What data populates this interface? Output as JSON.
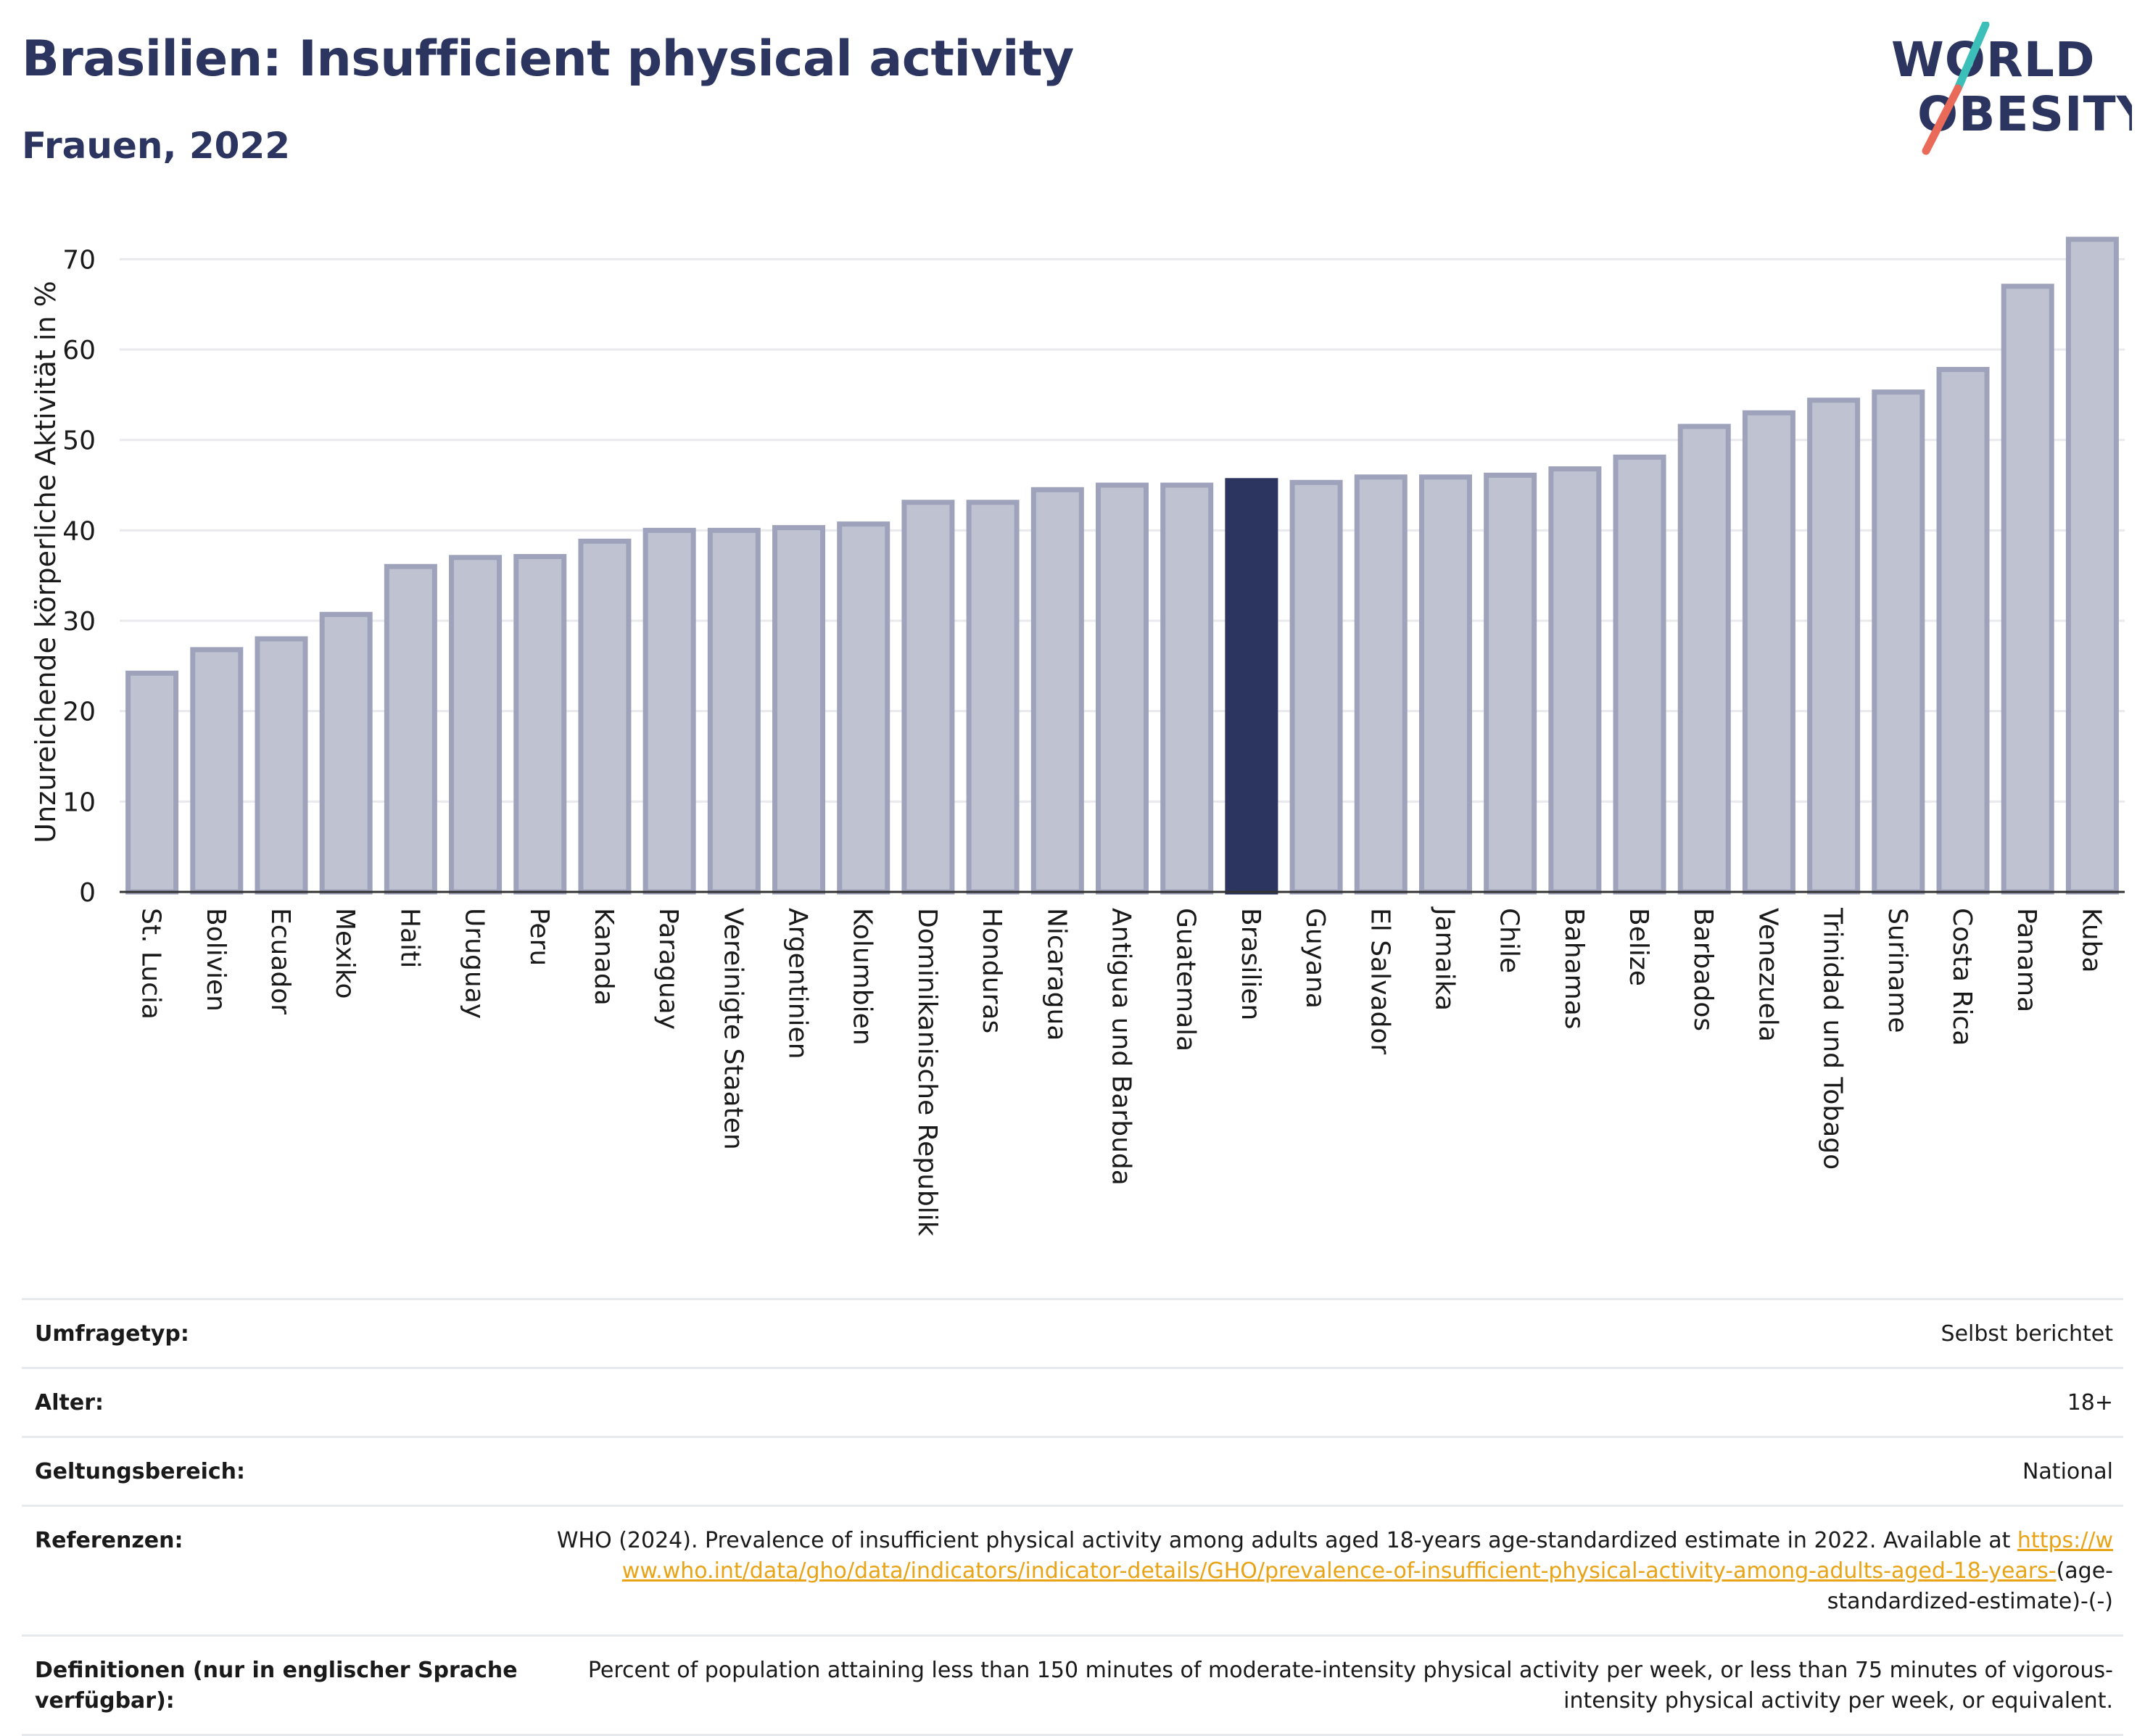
{
  "header": {
    "title": "Brasilien: Insufficient physical activity",
    "subtitle": "Frauen, 2022",
    "logo_line1": "WORLD",
    "logo_line2": "OBESITY"
  },
  "colors": {
    "title": "#2b3560",
    "bar_fill": "#bfc3d1",
    "bar_stroke": "#9ea3bb",
    "highlight": "#2b3560",
    "grid": "#e9e9ee",
    "link": "#e8a317",
    "logo_teal": "#3cbfb8",
    "logo_coral": "#ea6a5a"
  },
  "chart_data": {
    "type": "bar",
    "title": "Brasilien: Insufficient physical activity",
    "subtitle": "Frauen, 2022",
    "ylabel": "Unzureichende körperliche Aktivität in %",
    "xlabel": "",
    "ylim": [
      0,
      73
    ],
    "yticks": [
      0,
      10,
      20,
      30,
      40,
      50,
      60,
      70
    ],
    "grid": true,
    "highlight": "Brasilien",
    "categories": [
      "St. Lucia",
      "Bolivien",
      "Ecuador",
      "Mexiko",
      "Haiti",
      "Uruguay",
      "Peru",
      "Kanada",
      "Paraguay",
      "Vereinigte Staaten",
      "Argentinien",
      "Kolumbien",
      "Dominikanische Republik",
      "Honduras",
      "Nicaragua",
      "Antigua und Barbuda",
      "Guatemala",
      "Brasilien",
      "Guyana",
      "El Salvador",
      "Jamaika",
      "Chile",
      "Bahamas",
      "Belize",
      "Barbados",
      "Venezuela",
      "Trinidad und Tobago",
      "Suriname",
      "Costa Rica",
      "Panama",
      "Kuba"
    ],
    "values": [
      24.2,
      26.8,
      28.0,
      30.7,
      36.0,
      37.0,
      37.1,
      38.8,
      40.0,
      40.0,
      40.3,
      40.7,
      43.1,
      43.1,
      44.5,
      45.0,
      45.0,
      45.5,
      45.3,
      45.9,
      45.9,
      46.1,
      46.8,
      48.1,
      51.5,
      53.0,
      54.4,
      55.3,
      57.8,
      67.0,
      72.2
    ]
  },
  "meta": {
    "survey_label": "Umfragetyp:",
    "survey_value": "Selbst berichtet",
    "age_label": "Alter:",
    "age_value": "18+",
    "scope_label": "Geltungsbereich:",
    "scope_value": "National",
    "ref_label": "Referenzen:",
    "ref_text": "WHO (2024). Prevalence of insufficient physical activity among adults aged 18-years age-standardized estimate in 2022. Available at",
    "ref_link": "https://www.who.int/data/gho/data/indicators/indicator-details/GHO/prevalence-of-insufficient-physical-activity-among-adults-aged-18-years-",
    "ref_tail": "(age-standardized-estimate)-(-)",
    "def_label": "Definitionen (nur in englischer Sprache verfügbar):",
    "def_value": "Percent of population attaining less than 150 minutes of moderate-intensity physical activity per week, or less than 75 minutes of vigorous-intensity physical activity per week, or equivalent."
  }
}
